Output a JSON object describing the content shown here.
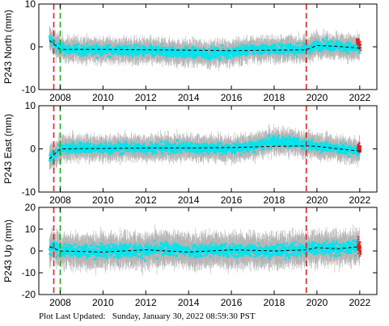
{
  "footer": {
    "label": "Plot Last Updated:",
    "value": "Sunday, January 30, 2022 08:59:30 PST"
  },
  "chart_data": [
    {
      "type": "scatter",
      "title": "",
      "xlabel": "",
      "ylabel": "P243 North (mm)",
      "xlim": [
        2007.0,
        2022.8
      ],
      "ylim": [
        -10,
        10
      ],
      "x_ticks": [
        2008,
        2010,
        2012,
        2014,
        2016,
        2018,
        2020,
        2022
      ],
      "y_ticks": [
        -10,
        0,
        10
      ],
      "grid": false,
      "events": [
        {
          "x": 2007.7,
          "color": "#dd2222"
        },
        {
          "x": 2008.0,
          "color": "#22aa22"
        },
        {
          "x": 2019.5,
          "color": "#dd2222"
        }
      ],
      "series": [
        {
          "color": "#00e5ee",
          "error_color": "#b4b4b4",
          "spread": 1.2,
          "error": 2.4,
          "values": [
            [
              2007.5,
              1.8
            ],
            [
              2008.0,
              -0.5
            ],
            [
              2009.0,
              -0.8
            ],
            [
              2010.0,
              -0.8
            ],
            [
              2011.0,
              -0.9
            ],
            [
              2012.0,
              -1.0
            ],
            [
              2013.0,
              -1.2
            ],
            [
              2014.0,
              -1.4
            ],
            [
              2015.0,
              -1.6
            ],
            [
              2016.0,
              -1.3
            ],
            [
              2017.0,
              -0.6
            ],
            [
              2018.0,
              -0.5
            ],
            [
              2019.0,
              -0.6
            ],
            [
              2019.5,
              -0.5
            ],
            [
              2020.0,
              0.4
            ],
            [
              2021.0,
              0.2
            ],
            [
              2022.0,
              -0.4
            ]
          ]
        },
        {
          "name": "",
          "color": "#dd2222",
          "spread": 1.0,
          "values": [
            [
              2021.85,
              1.5
            ],
            [
              2022.05,
              0.0
            ]
          ]
        }
      ],
      "model": {
        "color": "#000000",
        "values": [
          [
            2007.5,
            1.5
          ],
          [
            2008.0,
            -0.6
          ],
          [
            2010.0,
            -0.6
          ],
          [
            2012.0,
            -0.7
          ],
          [
            2014.0,
            -0.8
          ],
          [
            2016.0,
            -0.9
          ],
          [
            2018.0,
            -0.8
          ],
          [
            2019.5,
            -0.7
          ],
          [
            2020.0,
            0.3
          ],
          [
            2021.0,
            0.1
          ],
          [
            2022.0,
            -0.3
          ]
        ]
      }
    },
    {
      "type": "scatter",
      "title": "",
      "xlabel": "",
      "ylabel": "P243 East (mm)",
      "xlim": [
        2007.0,
        2022.8
      ],
      "ylim": [
        -10,
        10
      ],
      "x_ticks": [
        2008,
        2010,
        2012,
        2014,
        2016,
        2018,
        2020,
        2022
      ],
      "y_ticks": [
        -10,
        0,
        10
      ],
      "grid": false,
      "events": [
        {
          "x": 2007.7,
          "color": "#dd2222"
        },
        {
          "x": 2008.0,
          "color": "#22aa22"
        },
        {
          "x": 2019.5,
          "color": "#dd2222"
        }
      ],
      "series": [
        {
          "color": "#00e5ee",
          "error_color": "#b4b4b4",
          "spread": 1.2,
          "error": 2.4,
          "values": [
            [
              2007.5,
              -2.3
            ],
            [
              2008.0,
              0.0
            ],
            [
              2009.0,
              0.3
            ],
            [
              2010.0,
              0.0
            ],
            [
              2011.0,
              0.3
            ],
            [
              2012.0,
              0.2
            ],
            [
              2013.0,
              0.3
            ],
            [
              2014.0,
              0.3
            ],
            [
              2015.0,
              0.2
            ],
            [
              2016.0,
              0.0
            ],
            [
              2017.0,
              0.5
            ],
            [
              2018.0,
              1.8
            ],
            [
              2019.0,
              1.5
            ],
            [
              2019.5,
              0.8
            ],
            [
              2020.0,
              0.8
            ],
            [
              2021.0,
              0.0
            ],
            [
              2022.0,
              -0.6
            ]
          ]
        },
        {
          "name": "",
          "color": "#dd2222",
          "spread": 1.0,
          "values": [
            [
              2021.9,
              0.5
            ],
            [
              2022.05,
              0.0
            ]
          ]
        }
      ],
      "model": {
        "color": "#000000",
        "values": [
          [
            2007.5,
            -2.3
          ],
          [
            2008.0,
            0.0
          ],
          [
            2010.0,
            0.1
          ],
          [
            2012.0,
            0.2
          ],
          [
            2014.0,
            0.2
          ],
          [
            2016.0,
            0.3
          ],
          [
            2018.0,
            0.6
          ],
          [
            2019.5,
            0.7
          ],
          [
            2020.0,
            0.6
          ],
          [
            2021.0,
            0.0
          ],
          [
            2022.0,
            -0.5
          ]
        ]
      }
    },
    {
      "type": "scatter",
      "title": "",
      "xlabel": "",
      "ylabel": "P243 Up (mm)",
      "xlim": [
        2007.0,
        2022.8
      ],
      "ylim": [
        -20,
        20
      ],
      "x_ticks": [
        2008,
        2010,
        2012,
        2014,
        2016,
        2018,
        2020,
        2022
      ],
      "y_ticks": [
        -20,
        -10,
        0,
        10,
        20
      ],
      "grid": false,
      "events": [
        {
          "x": 2007.7,
          "color": "#dd2222"
        },
        {
          "x": 2008.0,
          "color": "#22aa22"
        },
        {
          "x": 2019.5,
          "color": "#dd2222"
        }
      ],
      "series": [
        {
          "color": "#00e5ee",
          "error_color": "#b4b4b4",
          "spread": 3.0,
          "error": 6.5,
          "values": [
            [
              2007.5,
              1.5
            ],
            [
              2008.0,
              0.5
            ],
            [
              2009.0,
              0.0
            ],
            [
              2010.0,
              0.0
            ],
            [
              2011.0,
              0.5
            ],
            [
              2012.0,
              0.0
            ],
            [
              2013.0,
              1.0
            ],
            [
              2014.0,
              0.0
            ],
            [
              2015.0,
              0.5
            ],
            [
              2016.0,
              0.0
            ],
            [
              2017.0,
              0.5
            ],
            [
              2018.0,
              0.0
            ],
            [
              2019.0,
              0.5
            ],
            [
              2019.5,
              1.0
            ],
            [
              2020.0,
              1.5
            ],
            [
              2021.0,
              1.0
            ],
            [
              2022.0,
              2.0
            ]
          ]
        },
        {
          "name": "",
          "color": "#dd2222",
          "spread": 3.0,
          "values": [
            [
              2021.9,
              3.0
            ],
            [
              2022.05,
              0.0
            ]
          ]
        }
      ],
      "model": {
        "color": "#000000",
        "values": [
          [
            2007.5,
            2.0
          ],
          [
            2008.0,
            0.0
          ],
          [
            2010.0,
            -0.5
          ],
          [
            2012.0,
            0.5
          ],
          [
            2014.0,
            -0.5
          ],
          [
            2016.0,
            0.5
          ],
          [
            2018.0,
            0.0
          ],
          [
            2019.5,
            0.5
          ],
          [
            2020.0,
            1.5
          ],
          [
            2021.0,
            1.0
          ],
          [
            2022.0,
            2.0
          ]
        ]
      }
    }
  ]
}
